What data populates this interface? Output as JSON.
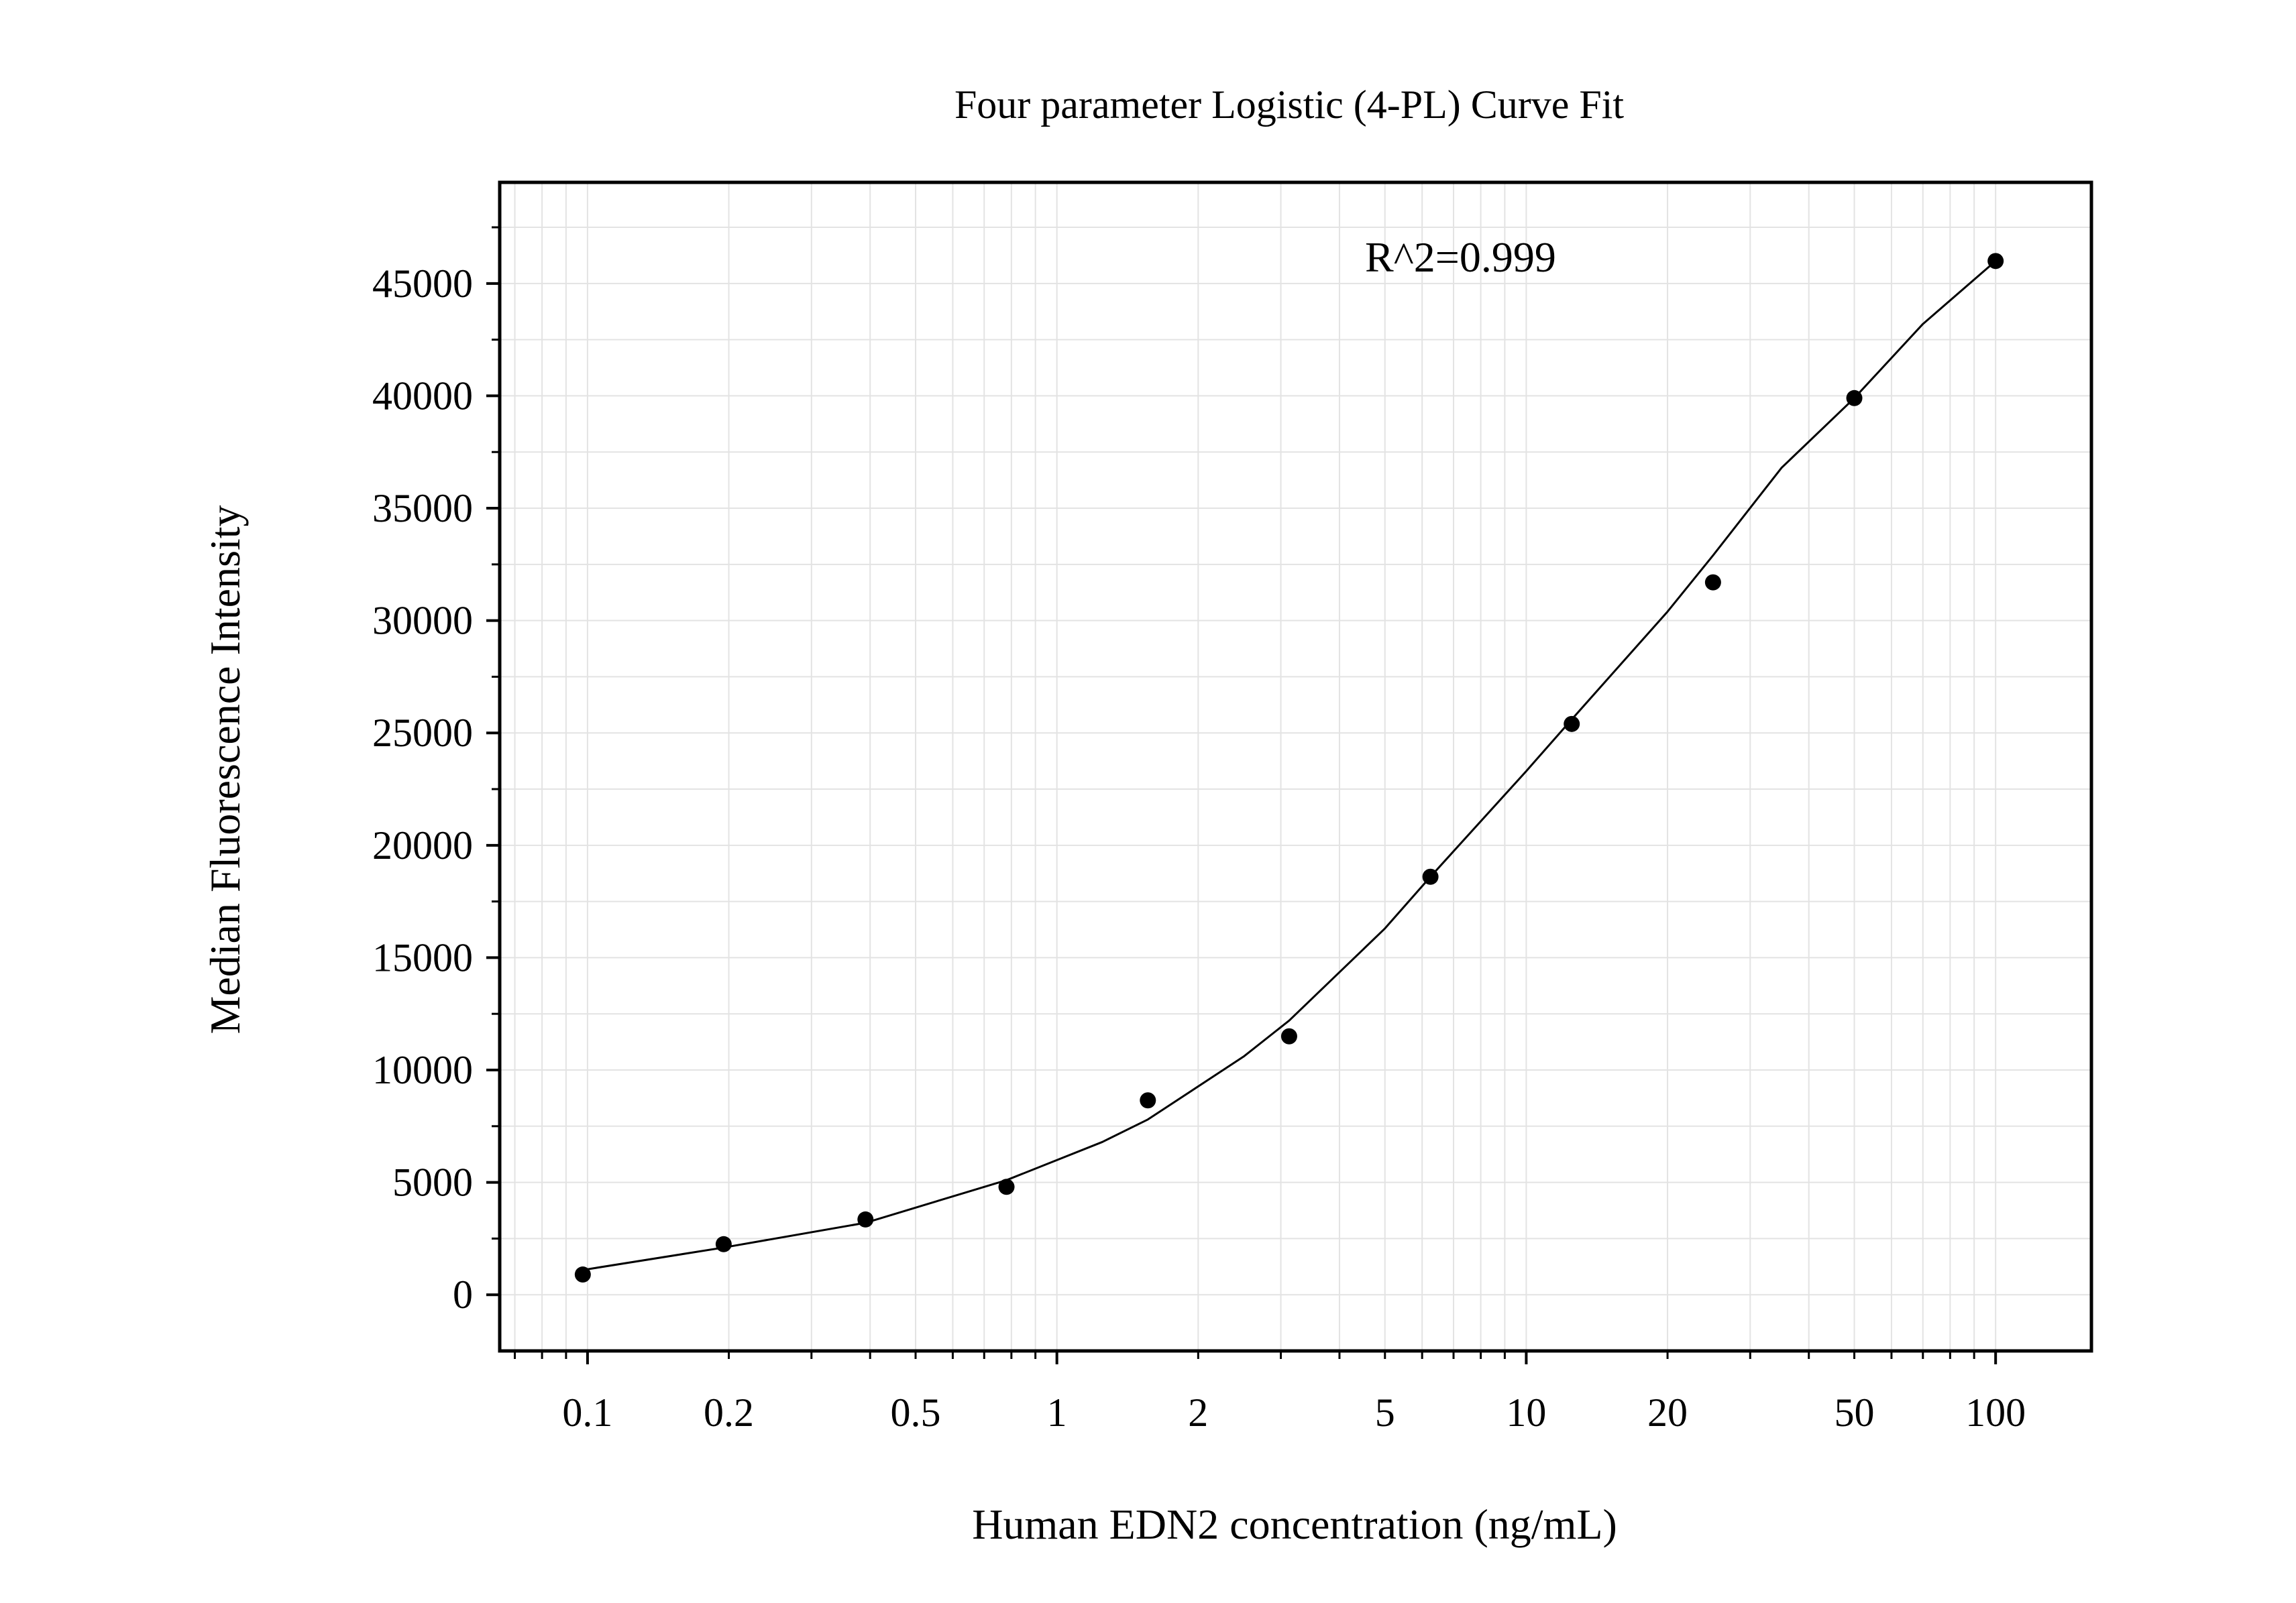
{
  "chart_data": {
    "type": "scatter",
    "title": "Four parameter Logistic (4-PL) Curve Fit",
    "xlabel": "Human EDN2 concentration (ng/mL)",
    "ylabel": "Median Fluorescence Intensity",
    "x_scale": "log",
    "xlim": [
      0.065,
      160
    ],
    "ylim": [
      -2500,
      49500
    ],
    "x_ticks": [
      {
        "value": 0.1,
        "label": "0.1"
      },
      {
        "value": 0.2,
        "label": "0.2"
      },
      {
        "value": 0.5,
        "label": "0.5"
      },
      {
        "value": 1,
        "label": "1"
      },
      {
        "value": 2,
        "label": "2"
      },
      {
        "value": 5,
        "label": "5"
      },
      {
        "value": 10,
        "label": "10"
      },
      {
        "value": 20,
        "label": "20"
      },
      {
        "value": 50,
        "label": "50"
      },
      {
        "value": 100,
        "label": "100"
      }
    ],
    "y_ticks": [
      {
        "value": 0,
        "label": "0"
      },
      {
        "value": 5000,
        "label": "5000"
      },
      {
        "value": 10000,
        "label": "10000"
      },
      {
        "value": 15000,
        "label": "15000"
      },
      {
        "value": 20000,
        "label": "20000"
      },
      {
        "value": 25000,
        "label": "25000"
      },
      {
        "value": 30000,
        "label": "30000"
      },
      {
        "value": 35000,
        "label": "35000"
      },
      {
        "value": 40000,
        "label": "40000"
      },
      {
        "value": 45000,
        "label": "45000"
      }
    ],
    "grid": true,
    "annotation": "R^2=0.999",
    "series": [
      {
        "kind": "points",
        "x": [
          0.0977,
          0.195,
          0.391,
          0.781,
          1.5625,
          3.125,
          6.25,
          12.5,
          25,
          50,
          100
        ],
        "y": [
          900,
          2250,
          3350,
          4800,
          8650,
          11500,
          18600,
          25400,
          31700,
          39900,
          46000
        ]
      },
      {
        "kind": "fit",
        "x": [
          0.0977,
          0.195,
          0.391,
          0.781,
          1.25,
          1.5625,
          2.5,
          3.125,
          5,
          6.25,
          10,
          12.5,
          20,
          25,
          35,
          50,
          70,
          100
        ],
        "y": [
          1100,
          2100,
          3200,
          5100,
          6800,
          7800,
          10600,
          12200,
          16300,
          18600,
          23300,
          25600,
          30400,
          32900,
          36800,
          39900,
          43200,
          46000
        ]
      }
    ]
  },
  "colors": {
    "axis": "#000000",
    "grid": "#e3e3e3",
    "points": "#000000",
    "curve": "#000000"
  }
}
